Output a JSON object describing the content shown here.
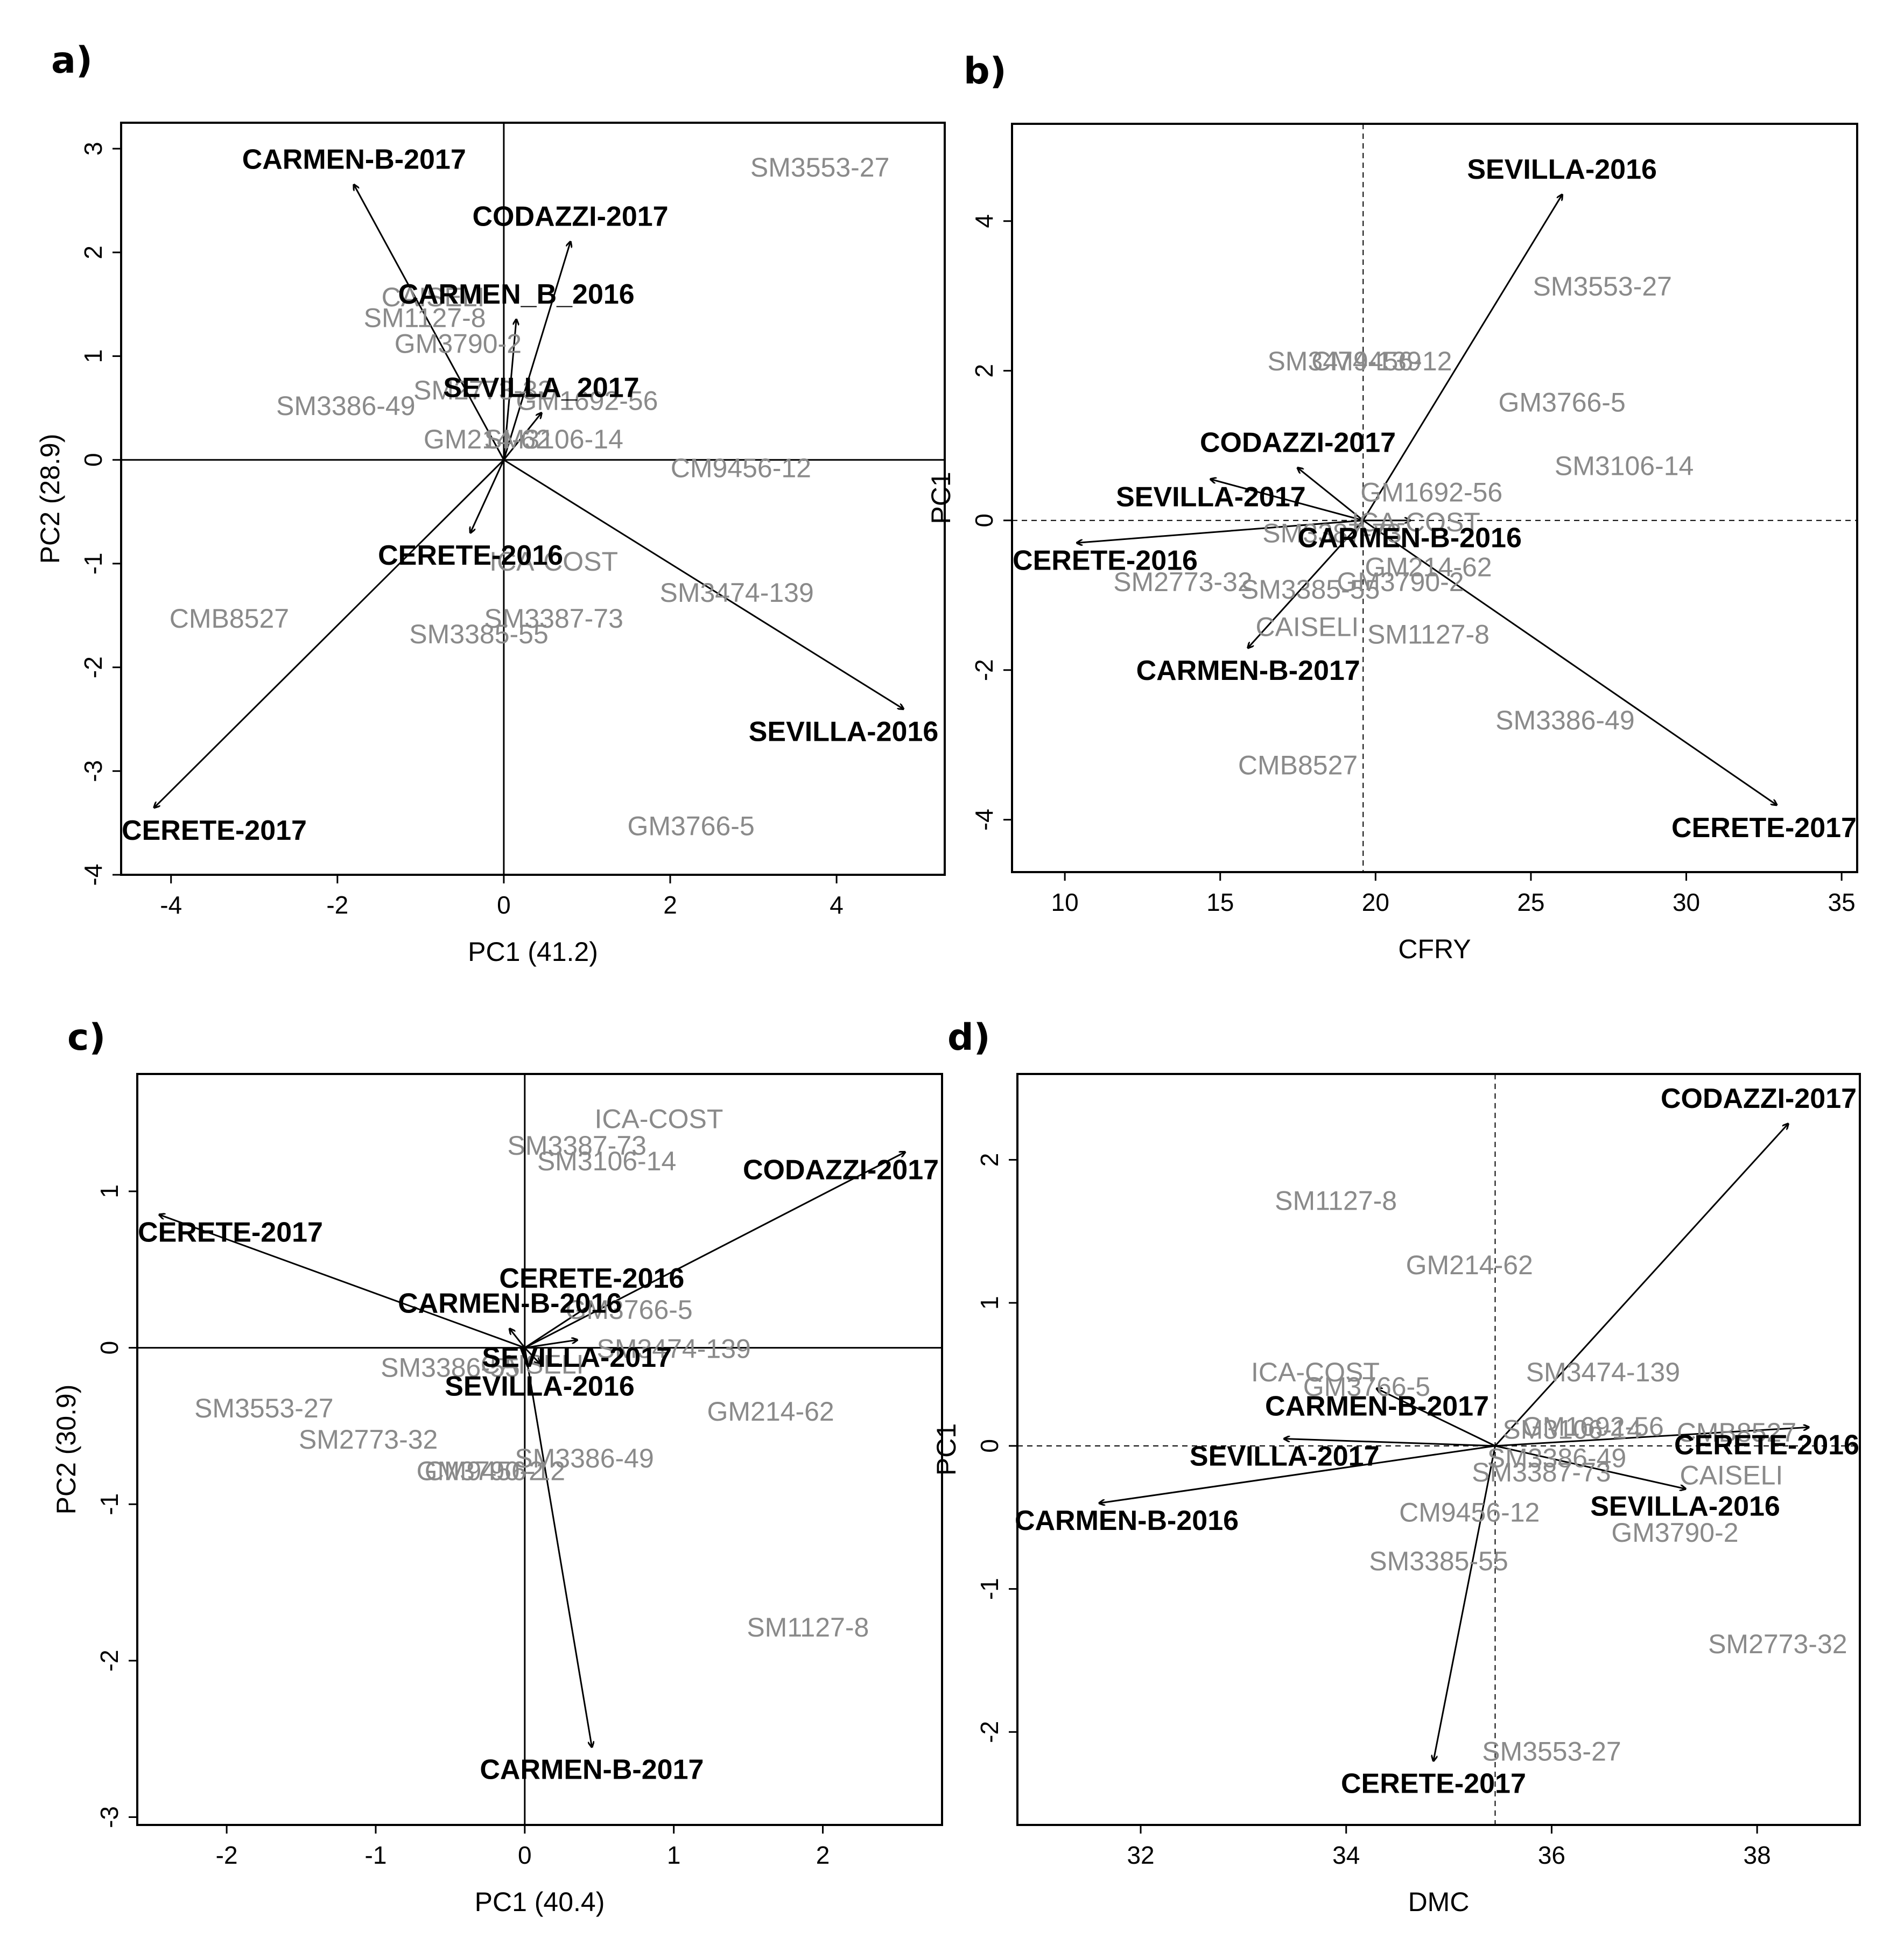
{
  "figure": {
    "panels": [
      "a)",
      "b)",
      "c)",
      "d)"
    ]
  },
  "chart_data": [
    {
      "panel": "a)",
      "type": "scatter",
      "subtype": "biplot",
      "xlabel": "PC1 (41.2)",
      "ylabel": "PC2 (28.9)",
      "xlim": [
        -4.6,
        5.3
      ],
      "ylim": [
        -4.0,
        3.25
      ],
      "xticks": [
        -4,
        -2,
        0,
        2,
        4
      ],
      "yticks": [
        -4,
        -3,
        -2,
        -1,
        0,
        1,
        2,
        3
      ],
      "ref_lines": {
        "x": 0,
        "y": 0,
        "style": "solid"
      },
      "genotypes": [
        {
          "label": "SM3553-27",
          "x": 3.8,
          "y": 2.8
        },
        {
          "label": "CAISELI",
          "x": -0.85,
          "y": 1.55
        },
        {
          "label": "SM1127-8",
          "x": -0.95,
          "y": 1.35
        },
        {
          "label": "GM3790-2",
          "x": -0.55,
          "y": 1.1
        },
        {
          "label": "SM3386-49",
          "x": -1.9,
          "y": 0.5
        },
        {
          "label": "SM2773-32",
          "x": -0.25,
          "y": 0.65
        },
        {
          "label": "GM1692-56",
          "x": 1.0,
          "y": 0.55
        },
        {
          "label": "GM214-62",
          "x": -0.2,
          "y": 0.18
        },
        {
          "label": "SM3106-14",
          "x": 0.6,
          "y": 0.18
        },
        {
          "label": "CM9456-12",
          "x": 2.85,
          "y": -0.1
        },
        {
          "label": "ICA-COST",
          "x": 0.6,
          "y": -1.0
        },
        {
          "label": "CMB8527",
          "x": -3.3,
          "y": -1.55
        },
        {
          "label": "SM3387-73",
          "x": 0.6,
          "y": -1.55
        },
        {
          "label": "SM3385-55",
          "x": -0.3,
          "y": -1.7
        },
        {
          "label": "SM3474-139",
          "x": 2.8,
          "y": -1.3
        },
        {
          "label": "GM3766-5",
          "x": 2.25,
          "y": -3.55
        }
      ],
      "environments": [
        {
          "label": "CARMEN-B-2017",
          "x": -1.8,
          "y": 2.65
        },
        {
          "label": "CODAZZI-2017",
          "x": 0.8,
          "y": 2.1
        },
        {
          "label": "CARMEN_B_2016",
          "x": 0.15,
          "y": 1.35
        },
        {
          "label": "SEVILLA_2017",
          "x": 0.45,
          "y": 0.45
        },
        {
          "label": "CERETE-2016",
          "x": -0.4,
          "y": -0.7
        },
        {
          "label": "SEVILLA-2016",
          "x": 4.8,
          "y": -2.4
        },
        {
          "label": "CERETE-2017",
          "x": -4.2,
          "y": -3.35
        }
      ]
    },
    {
      "panel": "b)",
      "type": "scatter",
      "subtype": "biplot",
      "xlabel": "CFRY",
      "ylabel": "PC1",
      "xlim": [
        8.3,
        35.5
      ],
      "ylim": [
        -4.7,
        5.3
      ],
      "xticks": [
        10,
        15,
        20,
        25,
        30,
        35
      ],
      "yticks": [
        -4,
        -2,
        0,
        2,
        4
      ],
      "ref_lines": {
        "x": 19.6,
        "y": 0,
        "style": "dashed"
      },
      "genotypes": [
        {
          "label": "SM3553-27",
          "x": 27.3,
          "y": 3.1
        },
        {
          "label": "SM3474-139",
          "x": 19.0,
          "y": 2.1
        },
        {
          "label": "CM9456-12",
          "x": 20.2,
          "y": 2.1
        },
        {
          "label": "GM3766-5",
          "x": 26.0,
          "y": 1.55
        },
        {
          "label": "SM3106-14",
          "x": 28.0,
          "y": 0.7
        },
        {
          "label": "GM1692-56",
          "x": 21.8,
          "y": 0.35
        },
        {
          "label": "ICA-COST",
          "x": 21.3,
          "y": -0.05
        },
        {
          "label": "SM3387-73",
          "x": 18.6,
          "y": -0.2
        },
        {
          "label": "GM214-62",
          "x": 21.7,
          "y": -0.65
        },
        {
          "label": "SM2773-32",
          "x": 13.8,
          "y": -0.85
        },
        {
          "label": "SM3385-55",
          "x": 17.9,
          "y": -0.95
        },
        {
          "label": "GM3790-2",
          "x": 20.8,
          "y": -0.85
        },
        {
          "label": "CAISELI",
          "x": 17.8,
          "y": -1.45
        },
        {
          "label": "SM1127-8",
          "x": 21.7,
          "y": -1.55
        },
        {
          "label": "SM3386-49",
          "x": 26.1,
          "y": -2.7
        },
        {
          "label": "CMB8527",
          "x": 17.5,
          "y": -3.3
        }
      ],
      "environments": [
        {
          "label": "SEVILLA-2016",
          "x": 26.0,
          "y": 4.35
        },
        {
          "label": "CODAZZI-2017",
          "x": 17.5,
          "y": 0.7
        },
        {
          "label": "SEVILLA-2017",
          "x": 14.7,
          "y": 0.55
        },
        {
          "label": "CARMEN-B-2016",
          "x": 21.1,
          "y": 0.0
        },
        {
          "label": "CERETE-2016",
          "x": 10.4,
          "y": -0.3
        },
        {
          "label": "CARMEN-B-2017",
          "x": 15.9,
          "y": -1.7
        },
        {
          "label": "CERETE-2017",
          "x": 32.9,
          "y": -3.8
        }
      ]
    },
    {
      "panel": "c)",
      "type": "scatter",
      "subtype": "biplot",
      "xlabel": "PC1 (40.4)",
      "ylabel": "PC2 (30.9)",
      "xlim": [
        -2.6,
        2.8
      ],
      "ylim": [
        -3.05,
        1.75
      ],
      "xticks": [
        -2,
        -1,
        0,
        1,
        2
      ],
      "yticks": [
        -3,
        -2,
        -1,
        0,
        1
      ],
      "ref_lines": {
        "x": 0,
        "y": 0,
        "style": "solid"
      },
      "genotypes": [
        {
          "label": "ICA-COST",
          "x": 0.9,
          "y": 1.45
        },
        {
          "label": "SM3387-73",
          "x": 0.35,
          "y": 1.28
        },
        {
          "label": "SM3106-14",
          "x": 0.55,
          "y": 1.18
        },
        {
          "label": "GM3766-5",
          "x": 0.7,
          "y": 0.23
        },
        {
          "label": "SM3474-139",
          "x": 1.0,
          "y": -0.02
        },
        {
          "label": "SM3386-55",
          "x": -0.5,
          "y": -0.14
        },
        {
          "label": "CAISELI",
          "x": 0.05,
          "y": -0.12
        },
        {
          "label": "SM3553-27",
          "x": -1.75,
          "y": -0.4
        },
        {
          "label": "GM214-62",
          "x": 1.65,
          "y": -0.42
        },
        {
          "label": "SM2773-32",
          "x": -1.05,
          "y": -0.6
        },
        {
          "label": "SM3386-49",
          "x": 0.4,
          "y": -0.72
        },
        {
          "label": "GM3790-2",
          "x": -0.3,
          "y": -0.8
        },
        {
          "label": "CM9456-12",
          "x": -0.2,
          "y": -0.8
        },
        {
          "label": "SM1127-8",
          "x": 1.9,
          "y": -1.8
        }
      ],
      "environments": [
        {
          "label": "CODAZZI-2017",
          "x": 2.55,
          "y": 1.25
        },
        {
          "label": "CERETE-2017",
          "x": -2.45,
          "y": 0.85
        },
        {
          "label": "CERETE-2016",
          "x": 0.45,
          "y": 0.28
        },
        {
          "label": "CARMEN-B-2016",
          "x": -0.1,
          "y": 0.12
        },
        {
          "label": "SEVILLA-2017",
          "x": 0.35,
          "y": 0.05
        },
        {
          "label": "SEVILLA-2016",
          "x": 0.1,
          "y": -0.1
        },
        {
          "label": "CARMEN-B-2017",
          "x": 0.45,
          "y": -2.55
        }
      ]
    },
    {
      "panel": "d)",
      "type": "scatter",
      "subtype": "biplot",
      "xlabel": "DMC",
      "ylabel": "PC1",
      "xlim": [
        30.8,
        39.0
      ],
      "ylim": [
        -2.65,
        2.6
      ],
      "xticks": [
        32,
        34,
        36,
        38
      ],
      "yticks": [
        -2,
        -1,
        0,
        1,
        2
      ],
      "ref_lines": {
        "x": 35.45,
        "y": 0,
        "style": "dashed"
      },
      "genotypes": [
        {
          "label": "SM1127-8",
          "x": 33.9,
          "y": 1.7
        },
        {
          "label": "GM214-62",
          "x": 35.2,
          "y": 1.25
        },
        {
          "label": "ICA-COST",
          "x": 33.7,
          "y": 0.5
        },
        {
          "label": "GM3766-5",
          "x": 34.2,
          "y": 0.4
        },
        {
          "label": "SM3474-139",
          "x": 36.5,
          "y": 0.5
        },
        {
          "label": "SM3106-14",
          "x": 36.2,
          "y": 0.1
        },
        {
          "label": "GM1692-56",
          "x": 36.4,
          "y": 0.12
        },
        {
          "label": "CMB8527",
          "x": 37.8,
          "y": 0.08
        },
        {
          "label": "SM3386-49",
          "x": 36.05,
          "y": -0.1
        },
        {
          "label": "SM3387-73",
          "x": 35.9,
          "y": -0.2
        },
        {
          "label": "CAISELI",
          "x": 37.75,
          "y": -0.22
        },
        {
          "label": "CM9456-12",
          "x": 35.2,
          "y": -0.48
        },
        {
          "label": "GM3790-2",
          "x": 37.2,
          "y": -0.62
        },
        {
          "label": "SM3385-55",
          "x": 34.9,
          "y": -0.82
        },
        {
          "label": "SM2773-32",
          "x": 38.2,
          "y": -1.4
        },
        {
          "label": "SM3553-27",
          "x": 36.0,
          "y": -2.15
        }
      ],
      "environments": [
        {
          "label": "CODAZZI-2017",
          "x": 38.3,
          "y": 2.25
        },
        {
          "label": "CARMEN-B-2017",
          "x": 34.3,
          "y": 0.4
        },
        {
          "label": "CERETE-2016",
          "x": 38.5,
          "y": 0.13
        },
        {
          "label": "SEVILLA-2017",
          "x": 33.4,
          "y": 0.05
        },
        {
          "label": "SEVILLA-2016",
          "x": 37.3,
          "y": -0.3
        },
        {
          "label": "CARMEN-B-2016",
          "x": 31.6,
          "y": -0.4
        },
        {
          "label": "CERETE-2017",
          "x": 34.85,
          "y": -2.2
        }
      ]
    }
  ]
}
